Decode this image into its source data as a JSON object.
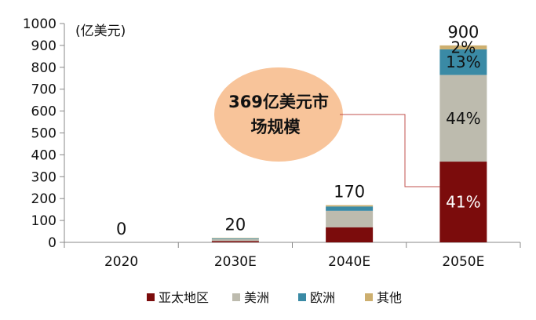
{
  "chart_data": {
    "type": "bar",
    "stacked": true,
    "unit_label": "(亿美元)",
    "categories": [
      "2020",
      "2030E",
      "2040E",
      "2050E"
    ],
    "ylim": [
      0,
      1000
    ],
    "yticks": [
      0,
      100,
      200,
      300,
      400,
      500,
      600,
      700,
      800,
      900,
      1000
    ],
    "totals": [
      0,
      20,
      170,
      900
    ],
    "series": [
      {
        "name": "亚太地区",
        "color": "#7B0C0C",
        "values": [
          0,
          6,
          69,
          369
        ]
      },
      {
        "name": "美洲",
        "color": "#BDBBAE",
        "values": [
          0,
          9,
          75,
          396
        ]
      },
      {
        "name": "欧洲",
        "color": "#3A8AA5",
        "values": [
          0,
          3,
          20,
          117
        ]
      },
      {
        "name": "其他",
        "color": "#CDAF6F",
        "values": [
          0,
          2,
          6,
          18
        ]
      }
    ],
    "segment_labels": [
      {
        "category": "2050E",
        "series": "亚太地区",
        "text": "41%",
        "color": "#ffffff"
      },
      {
        "category": "2050E",
        "series": "美洲",
        "text": "44%",
        "color": "#111111"
      },
      {
        "category": "2050E",
        "series": "欧洲",
        "text": "13%",
        "color": "#111111"
      },
      {
        "category": "2050E",
        "series": "其他",
        "text": "2%",
        "color": "#111111"
      }
    ],
    "annotation": {
      "line1": "369亿美元市",
      "line2": "场规模",
      "fill": "#F8C49A"
    },
    "legend_position": "bottom",
    "grid": false
  }
}
